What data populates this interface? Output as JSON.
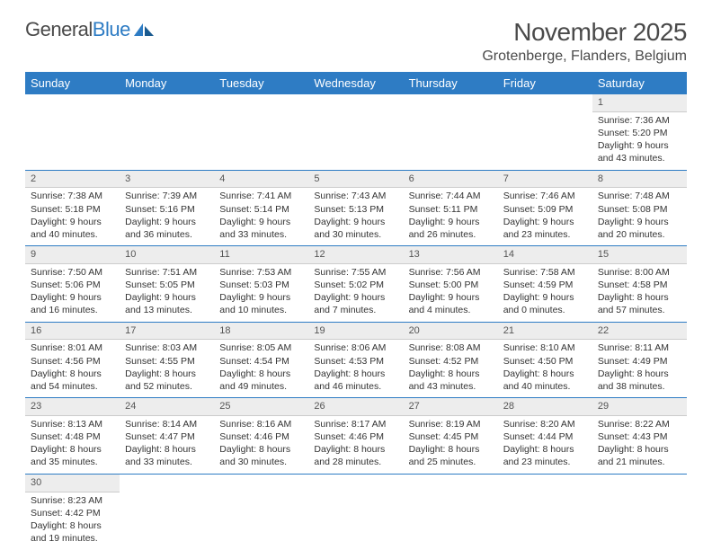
{
  "logo": {
    "name_part1": "General",
    "name_part2": "Blue"
  },
  "title": "November 2025",
  "location": "Grotenberge, Flanders, Belgium",
  "colors": {
    "header_bg": "#2e7cc4",
    "header_text": "#ffffff",
    "body_text": "#333333",
    "title_text": "#4a4a4a",
    "daynum_bg": "#ededed",
    "border": "#2e7cc4"
  },
  "day_headers": [
    "Sunday",
    "Monday",
    "Tuesday",
    "Wednesday",
    "Thursday",
    "Friday",
    "Saturday"
  ],
  "weeks": [
    [
      null,
      null,
      null,
      null,
      null,
      null,
      {
        "n": "1",
        "sunrise": "Sunrise: 7:36 AM",
        "sunset": "Sunset: 5:20 PM",
        "daylight1": "Daylight: 9 hours",
        "daylight2": "and 43 minutes."
      }
    ],
    [
      {
        "n": "2",
        "sunrise": "Sunrise: 7:38 AM",
        "sunset": "Sunset: 5:18 PM",
        "daylight1": "Daylight: 9 hours",
        "daylight2": "and 40 minutes."
      },
      {
        "n": "3",
        "sunrise": "Sunrise: 7:39 AM",
        "sunset": "Sunset: 5:16 PM",
        "daylight1": "Daylight: 9 hours",
        "daylight2": "and 36 minutes."
      },
      {
        "n": "4",
        "sunrise": "Sunrise: 7:41 AM",
        "sunset": "Sunset: 5:14 PM",
        "daylight1": "Daylight: 9 hours",
        "daylight2": "and 33 minutes."
      },
      {
        "n": "5",
        "sunrise": "Sunrise: 7:43 AM",
        "sunset": "Sunset: 5:13 PM",
        "daylight1": "Daylight: 9 hours",
        "daylight2": "and 30 minutes."
      },
      {
        "n": "6",
        "sunrise": "Sunrise: 7:44 AM",
        "sunset": "Sunset: 5:11 PM",
        "daylight1": "Daylight: 9 hours",
        "daylight2": "and 26 minutes."
      },
      {
        "n": "7",
        "sunrise": "Sunrise: 7:46 AM",
        "sunset": "Sunset: 5:09 PM",
        "daylight1": "Daylight: 9 hours",
        "daylight2": "and 23 minutes."
      },
      {
        "n": "8",
        "sunrise": "Sunrise: 7:48 AM",
        "sunset": "Sunset: 5:08 PM",
        "daylight1": "Daylight: 9 hours",
        "daylight2": "and 20 minutes."
      }
    ],
    [
      {
        "n": "9",
        "sunrise": "Sunrise: 7:50 AM",
        "sunset": "Sunset: 5:06 PM",
        "daylight1": "Daylight: 9 hours",
        "daylight2": "and 16 minutes."
      },
      {
        "n": "10",
        "sunrise": "Sunrise: 7:51 AM",
        "sunset": "Sunset: 5:05 PM",
        "daylight1": "Daylight: 9 hours",
        "daylight2": "and 13 minutes."
      },
      {
        "n": "11",
        "sunrise": "Sunrise: 7:53 AM",
        "sunset": "Sunset: 5:03 PM",
        "daylight1": "Daylight: 9 hours",
        "daylight2": "and 10 minutes."
      },
      {
        "n": "12",
        "sunrise": "Sunrise: 7:55 AM",
        "sunset": "Sunset: 5:02 PM",
        "daylight1": "Daylight: 9 hours",
        "daylight2": "and 7 minutes."
      },
      {
        "n": "13",
        "sunrise": "Sunrise: 7:56 AM",
        "sunset": "Sunset: 5:00 PM",
        "daylight1": "Daylight: 9 hours",
        "daylight2": "and 4 minutes."
      },
      {
        "n": "14",
        "sunrise": "Sunrise: 7:58 AM",
        "sunset": "Sunset: 4:59 PM",
        "daylight1": "Daylight: 9 hours",
        "daylight2": "and 0 minutes."
      },
      {
        "n": "15",
        "sunrise": "Sunrise: 8:00 AM",
        "sunset": "Sunset: 4:58 PM",
        "daylight1": "Daylight: 8 hours",
        "daylight2": "and 57 minutes."
      }
    ],
    [
      {
        "n": "16",
        "sunrise": "Sunrise: 8:01 AM",
        "sunset": "Sunset: 4:56 PM",
        "daylight1": "Daylight: 8 hours",
        "daylight2": "and 54 minutes."
      },
      {
        "n": "17",
        "sunrise": "Sunrise: 8:03 AM",
        "sunset": "Sunset: 4:55 PM",
        "daylight1": "Daylight: 8 hours",
        "daylight2": "and 52 minutes."
      },
      {
        "n": "18",
        "sunrise": "Sunrise: 8:05 AM",
        "sunset": "Sunset: 4:54 PM",
        "daylight1": "Daylight: 8 hours",
        "daylight2": "and 49 minutes."
      },
      {
        "n": "19",
        "sunrise": "Sunrise: 8:06 AM",
        "sunset": "Sunset: 4:53 PM",
        "daylight1": "Daylight: 8 hours",
        "daylight2": "and 46 minutes."
      },
      {
        "n": "20",
        "sunrise": "Sunrise: 8:08 AM",
        "sunset": "Sunset: 4:52 PM",
        "daylight1": "Daylight: 8 hours",
        "daylight2": "and 43 minutes."
      },
      {
        "n": "21",
        "sunrise": "Sunrise: 8:10 AM",
        "sunset": "Sunset: 4:50 PM",
        "daylight1": "Daylight: 8 hours",
        "daylight2": "and 40 minutes."
      },
      {
        "n": "22",
        "sunrise": "Sunrise: 8:11 AM",
        "sunset": "Sunset: 4:49 PM",
        "daylight1": "Daylight: 8 hours",
        "daylight2": "and 38 minutes."
      }
    ],
    [
      {
        "n": "23",
        "sunrise": "Sunrise: 8:13 AM",
        "sunset": "Sunset: 4:48 PM",
        "daylight1": "Daylight: 8 hours",
        "daylight2": "and 35 minutes."
      },
      {
        "n": "24",
        "sunrise": "Sunrise: 8:14 AM",
        "sunset": "Sunset: 4:47 PM",
        "daylight1": "Daylight: 8 hours",
        "daylight2": "and 33 minutes."
      },
      {
        "n": "25",
        "sunrise": "Sunrise: 8:16 AM",
        "sunset": "Sunset: 4:46 PM",
        "daylight1": "Daylight: 8 hours",
        "daylight2": "and 30 minutes."
      },
      {
        "n": "26",
        "sunrise": "Sunrise: 8:17 AM",
        "sunset": "Sunset: 4:46 PM",
        "daylight1": "Daylight: 8 hours",
        "daylight2": "and 28 minutes."
      },
      {
        "n": "27",
        "sunrise": "Sunrise: 8:19 AM",
        "sunset": "Sunset: 4:45 PM",
        "daylight1": "Daylight: 8 hours",
        "daylight2": "and 25 minutes."
      },
      {
        "n": "28",
        "sunrise": "Sunrise: 8:20 AM",
        "sunset": "Sunset: 4:44 PM",
        "daylight1": "Daylight: 8 hours",
        "daylight2": "and 23 minutes."
      },
      {
        "n": "29",
        "sunrise": "Sunrise: 8:22 AM",
        "sunset": "Sunset: 4:43 PM",
        "daylight1": "Daylight: 8 hours",
        "daylight2": "and 21 minutes."
      }
    ],
    [
      {
        "n": "30",
        "sunrise": "Sunrise: 8:23 AM",
        "sunset": "Sunset: 4:42 PM",
        "daylight1": "Daylight: 8 hours",
        "daylight2": "and 19 minutes."
      },
      null,
      null,
      null,
      null,
      null,
      null
    ]
  ]
}
